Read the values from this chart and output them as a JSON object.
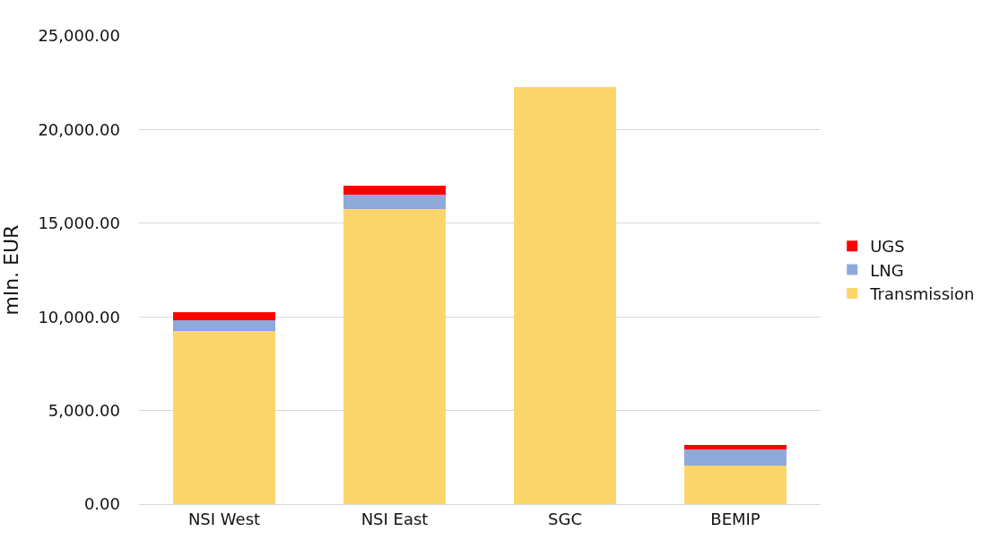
{
  "chart_data": {
    "type": "bar",
    "stacked": true,
    "ylabel": "mln. EUR",
    "categories": [
      "NSI West",
      "NSI East",
      "SGC",
      "BEMIP"
    ],
    "series": [
      {
        "name": "Transmission",
        "color": "#fdd66b",
        "values": [
          9230,
          15760,
          22250,
          2050
        ]
      },
      {
        "name": "LNG",
        "color": "#8eaadb",
        "values": [
          600,
          760,
          null,
          890
        ]
      },
      {
        "name": "UGS",
        "color": "#ff0000",
        "values": [
          400,
          500,
          null,
          240
        ]
      }
    ],
    "ylim": [
      0,
      25000
    ],
    "yticks": [
      {
        "value": 0,
        "label": "0.00"
      },
      {
        "value": 5000,
        "label": "5,000.00"
      },
      {
        "value": 10000,
        "label": "10,000.00"
      },
      {
        "value": 15000,
        "label": "15,000.00"
      },
      {
        "value": 20000,
        "label": "20,000.00"
      },
      {
        "value": 25000,
        "label": "25,000.00"
      }
    ],
    "grid": "y",
    "legend": "right"
  }
}
